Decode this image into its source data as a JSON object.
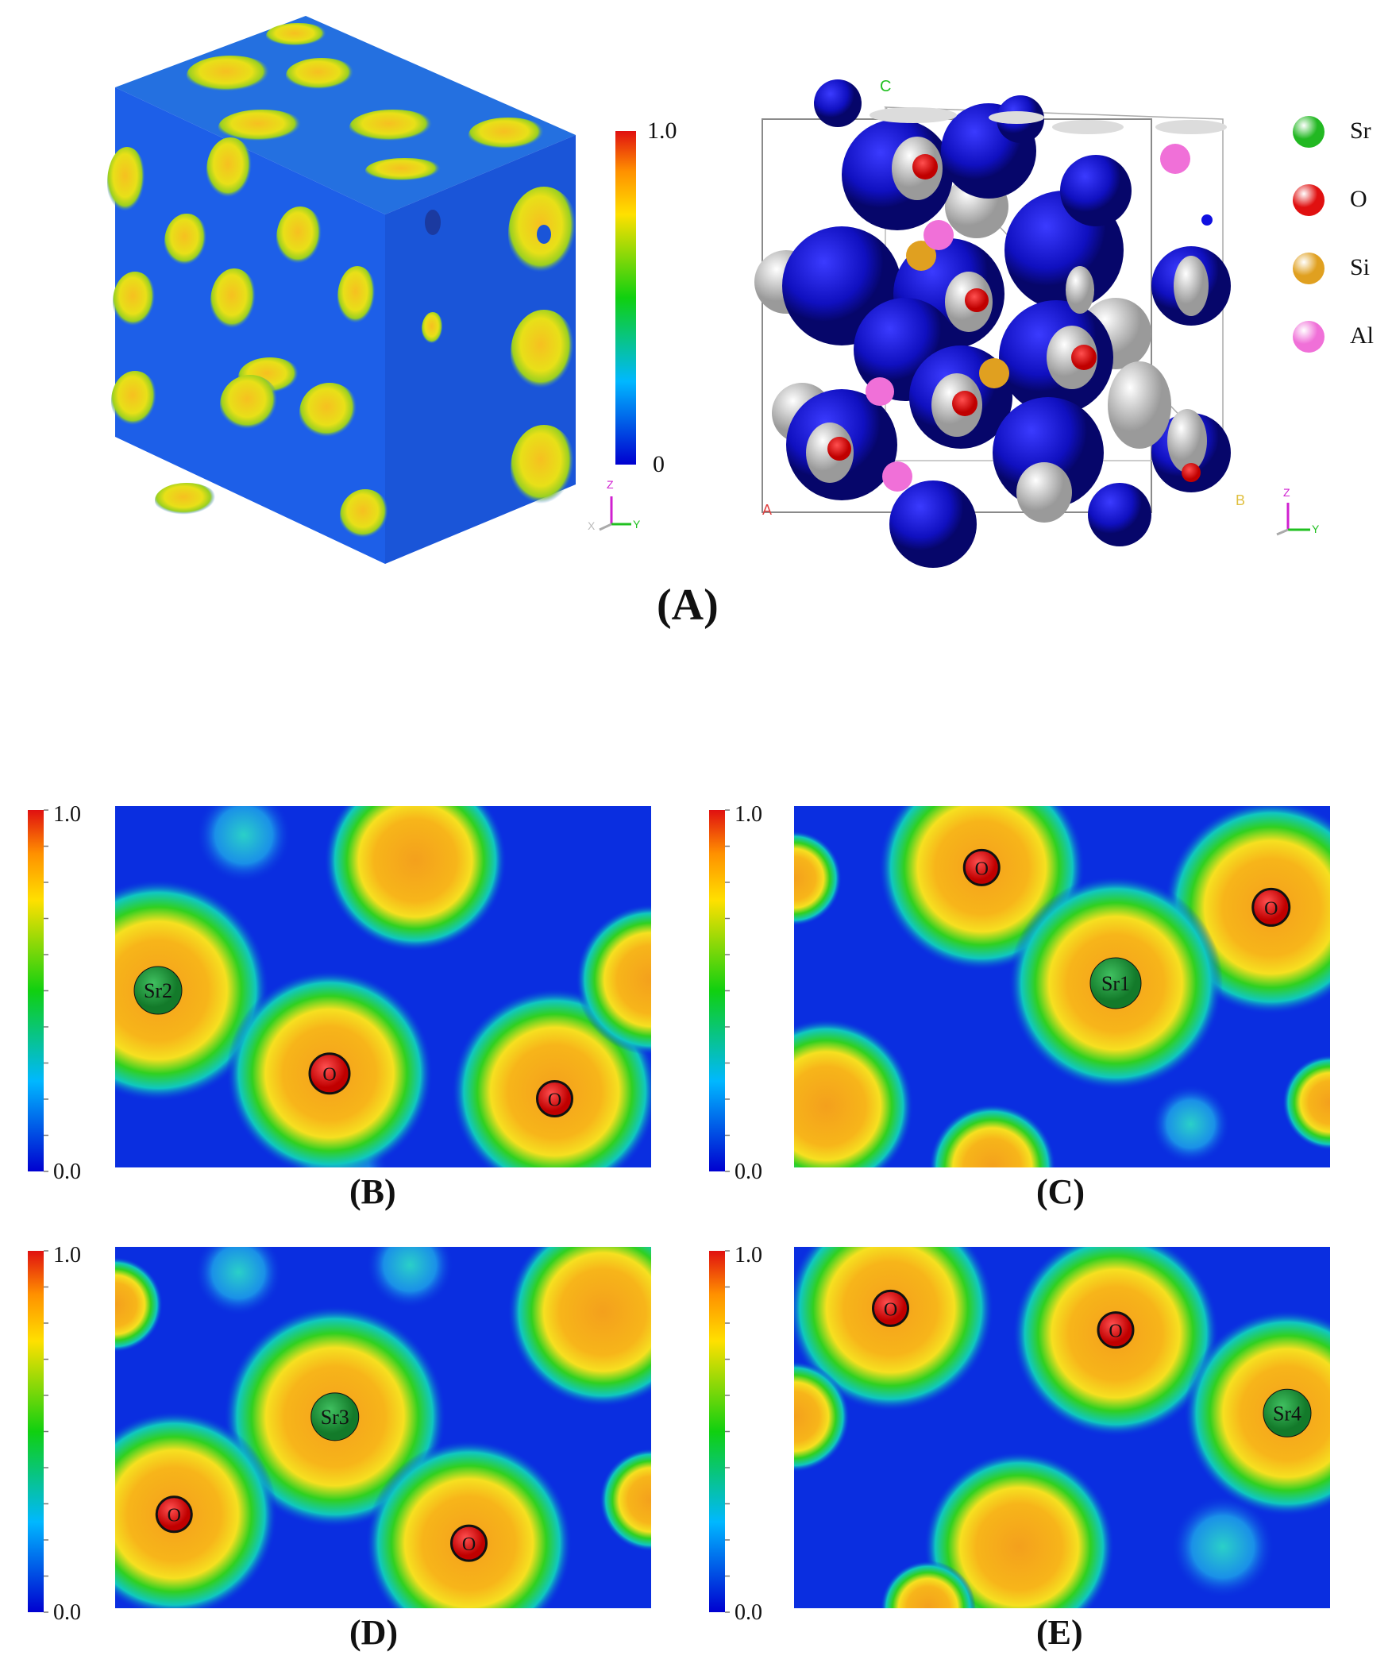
{
  "panel_a": {
    "label": "(A)",
    "colorbar": {
      "max": "1.0",
      "min": "0"
    },
    "axes": {
      "z": "Z",
      "y": "Y",
      "x": "X"
    },
    "cell_axes": {
      "c": "C",
      "a": "A",
      "b": "B"
    },
    "legend": [
      {
        "symbol": "Sr",
        "color": "#22b822"
      },
      {
        "symbol": "O",
        "color": "#e01010"
      },
      {
        "symbol": "Si",
        "color": "#e0a020"
      },
      {
        "symbol": "Al",
        "color": "#f070d8"
      }
    ]
  },
  "maps": [
    {
      "id": "B",
      "label": "(B)",
      "cb_max": "1.0",
      "cb_min": "0.0",
      "atoms": [
        {
          "t": "Sr2",
          "k": "sr"
        },
        {
          "t": "O",
          "k": "o"
        },
        {
          "t": "O",
          "k": "o"
        }
      ]
    },
    {
      "id": "C",
      "label": "(C)",
      "cb_max": "1.0",
      "cb_min": "0.0",
      "atoms": [
        {
          "t": "O",
          "k": "o"
        },
        {
          "t": "O",
          "k": "o"
        },
        {
          "t": "Sr1",
          "k": "sr"
        }
      ]
    },
    {
      "id": "D",
      "label": "(D)",
      "cb_max": "1.0",
      "cb_min": "0.0",
      "atoms": [
        {
          "t": "Sr3",
          "k": "sr"
        },
        {
          "t": "O",
          "k": "o"
        },
        {
          "t": "O",
          "k": "o"
        }
      ]
    },
    {
      "id": "E",
      "label": "(E)",
      "cb_max": "1.0",
      "cb_min": "0.0",
      "atoms": [
        {
          "t": "O",
          "k": "o"
        },
        {
          "t": "O",
          "k": "o"
        },
        {
          "t": "Sr4",
          "k": "sr"
        }
      ]
    }
  ],
  "colors": {
    "background_blue": "#0a2ee0",
    "sr_atom": "#1f9a3a",
    "o_atom": "#e01010",
    "shell_blue": "#1414c0"
  }
}
